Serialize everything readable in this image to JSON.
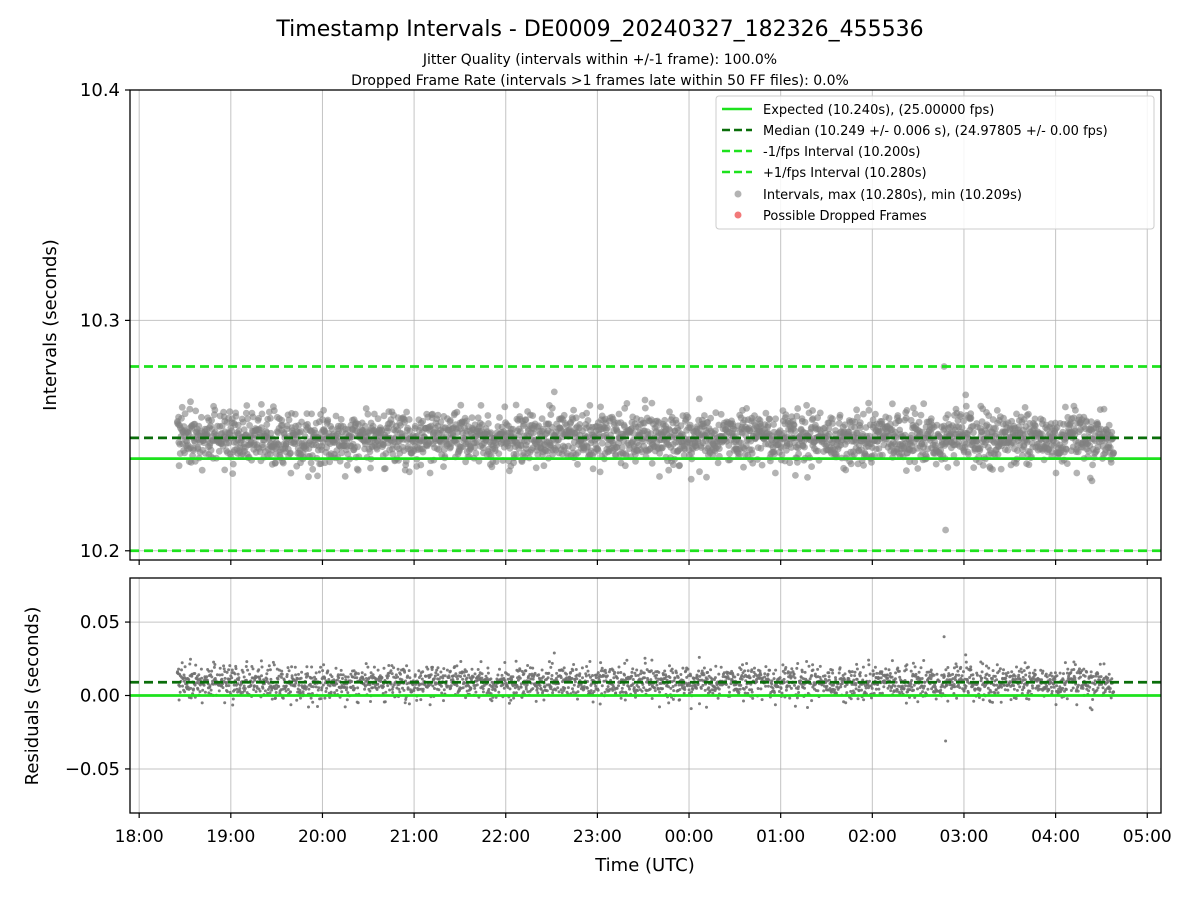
{
  "header": {
    "title": "Timestamp Intervals - DE0009_20240327_182326_455536",
    "subtitle_1": "Jitter Quality (intervals within +/-1 frame): 100.0%",
    "subtitle_2": "Dropped Frame Rate (intervals >1 frames late within 50 FF files): 0.0%"
  },
  "chart_data": [
    {
      "type": "scatter",
      "panel": "intervals",
      "ylabel": "Intervals (seconds)",
      "xlabel": "",
      "xlim": [
        "17:54",
        "05:09"
      ],
      "ylim": [
        10.196,
        10.4
      ],
      "yticks": [
        "10.2",
        "10.3",
        "10.4"
      ],
      "y_tick_values": [
        10.2,
        10.3,
        10.4
      ],
      "grid": true,
      "legend_position": "top-right",
      "reference_lines": [
        {
          "name": "Expected (10.240s), (25.00000 fps)",
          "y": 10.24,
          "style": "solid",
          "color": "#1de21d"
        },
        {
          "name": "Median (10.249 +/- 0.006 s), (24.97805 +/- 0.00 fps)",
          "y": 10.249,
          "style": "dashed",
          "color": "#0a6e0a"
        },
        {
          "name": "-1/fps Interval (10.200s)",
          "y": 10.2,
          "style": "dashed",
          "color": "#1de21d"
        },
        {
          "name": "+1/fps Interval (10.280s)",
          "y": 10.28,
          "style": "dashed",
          "color": "#1de21d"
        }
      ],
      "series": [
        {
          "name": "Intervals, max (10.280s), min (10.209s)",
          "kind": "interval_points",
          "color": "#808080",
          "x_start": "18:25",
          "x_end": "04:38",
          "center": 10.249,
          "spread": 0.006,
          "max": 10.28,
          "min": 10.209
        },
        {
          "name": "Possible Dropped Frames",
          "kind": "dropped_points",
          "color": "#f06262",
          "count": 0
        }
      ]
    },
    {
      "type": "scatter",
      "panel": "residuals",
      "ylabel": "Residuals (seconds)",
      "xlabel": "Time (UTC)",
      "xlim": [
        "17:54",
        "05:09"
      ],
      "ylim": [
        -0.08,
        0.08
      ],
      "yticks": [
        "0.05",
        "0.00",
        "−0.05"
      ],
      "y_tick_values": [
        0.05,
        0.0,
        -0.05
      ],
      "xticks": [
        "18:00",
        "19:00",
        "20:00",
        "21:00",
        "22:00",
        "23:00",
        "00:00",
        "01:00",
        "02:00",
        "03:00",
        "04:00",
        "05:00"
      ],
      "grid": true,
      "reference_lines": [
        {
          "y": 0.0,
          "style": "solid",
          "color": "#1de21d"
        },
        {
          "y": 0.009,
          "style": "dashed",
          "color": "#0a6e0a"
        }
      ],
      "series": [
        {
          "kind": "residual_points",
          "color": "#707070",
          "x_start": "18:25",
          "x_end": "04:38",
          "center": 0.009,
          "spread": 0.006,
          "max": 0.04,
          "min": -0.031
        }
      ]
    }
  ]
}
